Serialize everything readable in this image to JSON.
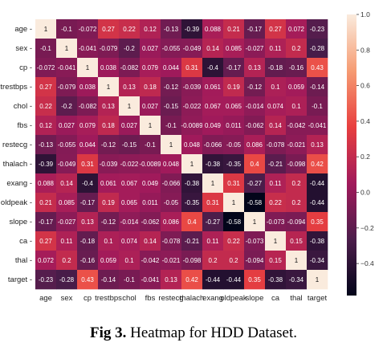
{
  "caption": {
    "label": "Fig 3.",
    "text": "Heatmap for HDD Dataset."
  },
  "chart_data": {
    "type": "heatmap",
    "colormap": "rocket",
    "colormap_stops": [
      "#03051a",
      "#4c1d4b",
      "#a11a5b",
      "#e83f3f",
      "#f69c73",
      "#faebdd"
    ],
    "variables": [
      "age",
      "sex",
      "cp",
      "trestbps",
      "chol",
      "fbs",
      "restecg",
      "thalach",
      "exang",
      "oldpeak",
      "slope",
      "ca",
      "thal",
      "target"
    ],
    "values": [
      [
        "1",
        "-0.1",
        "-0.072",
        "0.27",
        "0.22",
        "0.12",
        "-0.13",
        "-0.39",
        "0.088",
        "0.21",
        "-0.17",
        "0.27",
        "0.072",
        "-0.23"
      ],
      [
        "-0.1",
        "1",
        "-0.041",
        "-0.079",
        "-0.2",
        "0.027",
        "-0.055",
        "-0.049",
        "0.14",
        "0.085",
        "-0.027",
        "0.11",
        "0.2",
        "-0.28"
      ],
      [
        "-0.072",
        "-0.041",
        "1",
        "0.038",
        "-0.082",
        "0.079",
        "0.044",
        "0.31",
        "-0.4",
        "-0.17",
        "0.13",
        "-0.18",
        "-0.16",
        "0.43"
      ],
      [
        "0.27",
        "-0.079",
        "0.038",
        "1",
        "0.13",
        "0.18",
        "-0.12",
        "-0.039",
        "0.061",
        "0.19",
        "-0.12",
        "0.1",
        "0.059",
        "-0.14"
      ],
      [
        "0.22",
        "-0.2",
        "-0.082",
        "0.13",
        "1",
        "0.027",
        "-0.15",
        "-0.022",
        "0.067",
        "0.065",
        "-0.014",
        "0.074",
        "0.1",
        "-0.1"
      ],
      [
        "0.12",
        "0.027",
        "0.079",
        "0.18",
        "0.027",
        "1",
        "-0.1",
        "-0.0089",
        "0.049",
        "0.011",
        "-0.062",
        "0.14",
        "-0.042",
        "-0.041"
      ],
      [
        "-0.13",
        "-0.055",
        "0.044",
        "-0.12",
        "-0.15",
        "-0.1",
        "1",
        "0.048",
        "-0.066",
        "-0.05",
        "0.086",
        "-0.078",
        "-0.021",
        "0.13"
      ],
      [
        "-0.39",
        "-0.049",
        "0.31",
        "-0.039",
        "-0.022",
        "-0.0089",
        "0.048",
        "1",
        "-0.38",
        "-0.35",
        "0.4",
        "-0.21",
        "-0.098",
        "0.42"
      ],
      [
        "0.088",
        "0.14",
        "-0.4",
        "0.061",
        "0.067",
        "0.049",
        "-0.066",
        "-0.38",
        "1",
        "0.31",
        "-0.27",
        "0.11",
        "0.2",
        "-0.44"
      ],
      [
        "0.21",
        "0.085",
        "-0.17",
        "0.19",
        "0.065",
        "0.011",
        "-0.05",
        "-0.35",
        "0.31",
        "1",
        "-0.58",
        "0.22",
        "0.2",
        "-0.44"
      ],
      [
        "-0.17",
        "-0.027",
        "0.13",
        "-0.12",
        "-0.014",
        "-0.062",
        "0.086",
        "0.4",
        "-0.27",
        "-0.58",
        "1",
        "-0.073",
        "-0.094",
        "0.35"
      ],
      [
        "0.27",
        "0.11",
        "-0.18",
        "0.1",
        "0.074",
        "0.14",
        "-0.078",
        "-0.21",
        "0.11",
        "0.22",
        "-0.073",
        "1",
        "0.15",
        "-0.38"
      ],
      [
        "0.072",
        "0.2",
        "-0.16",
        "0.059",
        "0.1",
        "-0.042",
        "-0.021",
        "-0.098",
        "0.2",
        "0.2",
        "-0.094",
        "0.15",
        "1",
        "-0.34"
      ],
      [
        "-0.23",
        "-0.28",
        "0.43",
        "-0.14",
        "-0.1",
        "-0.041",
        "0.13",
        "0.42",
        "-0.44",
        "-0.44",
        "0.35",
        "-0.38",
        "-0.34",
        "1"
      ]
    ],
    "vmin": -0.58,
    "vmax": 1.0,
    "colorbar_ticks": [
      "1.0",
      "0.8",
      "0.6",
      "0.4",
      "0.2",
      "0.0",
      "−0.2",
      "−0.4"
    ],
    "title": "",
    "xlabel": "",
    "ylabel": ""
  }
}
